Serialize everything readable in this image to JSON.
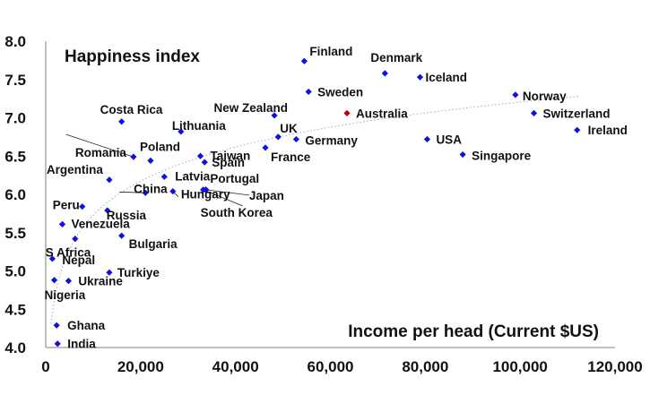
{
  "chart_data": {
    "type": "scatter",
    "title": "Happiness index",
    "xlabel": "Income per head (Current $US)",
    "ylabel": "",
    "xlim": [
      0,
      120000
    ],
    "ylim": [
      4.0,
      8.0
    ],
    "x_ticks": [
      "0",
      "20,000",
      "40,000",
      "60,000",
      "80,000",
      "100,000",
      "120,000"
    ],
    "y_ticks": [
      "4.0",
      "4.5",
      "5.0",
      "5.5",
      "6.0",
      "6.5",
      "7.0",
      "7.5",
      "8.0"
    ],
    "trendline": "logarithmic, dotted",
    "colors": {
      "default": "#1010e0",
      "highlight": "#c00000",
      "trend": "#9aa8d8"
    },
    "points": [
      {
        "name": "Finland",
        "x": 54500,
        "y": 7.74
      },
      {
        "name": "Denmark",
        "x": 71500,
        "y": 7.58
      },
      {
        "name": "Iceland",
        "x": 78900,
        "y": 7.53
      },
      {
        "name": "Sweden",
        "x": 55400,
        "y": 7.34
      },
      {
        "name": "Norway",
        "x": 99000,
        "y": 7.3
      },
      {
        "name": "Australia",
        "x": 63500,
        "y": 7.06,
        "highlight": true
      },
      {
        "name": "Switzerland",
        "x": 102900,
        "y": 7.06
      },
      {
        "name": "New Zealand",
        "x": 48200,
        "y": 7.03
      },
      {
        "name": "Costa Rica",
        "x": 16000,
        "y": 6.95
      },
      {
        "name": "Ireland",
        "x": 112000,
        "y": 6.84
      },
      {
        "name": "Lithuania",
        "x": 28500,
        "y": 6.82
      },
      {
        "name": "UK",
        "x": 49000,
        "y": 6.75
      },
      {
        "name": "Germany",
        "x": 52800,
        "y": 6.72
      },
      {
        "name": "USA",
        "x": 80400,
        "y": 6.72
      },
      {
        "name": "France",
        "x": 46300,
        "y": 6.61
      },
      {
        "name": "Taiwan",
        "x": 32600,
        "y": 6.5
      },
      {
        "name": "Singapore",
        "x": 87900,
        "y": 6.52
      },
      {
        "name": "Romania",
        "x": 18500,
        "y": 6.49
      },
      {
        "name": "Poland",
        "x": 22100,
        "y": 6.44
      },
      {
        "name": "Spain",
        "x": 33500,
        "y": 6.42
      },
      {
        "name": "Latvia",
        "x": 25000,
        "y": 6.23
      },
      {
        "name": "Argentina",
        "x": 13400,
        "y": 6.19
      },
      {
        "name": "Portugal",
        "x": 33700,
        "y": 6.06
      },
      {
        "name": "Japan",
        "x": 33800,
        "y": 6.06
      },
      {
        "name": "Hungary",
        "x": 26800,
        "y": 6.04
      },
      {
        "name": "South Korea",
        "x": 33200,
        "y": 6.06
      },
      {
        "name": "China",
        "x": 21000,
        "y": 6.02
      },
      {
        "name": "Peru",
        "x": 7700,
        "y": 5.84
      },
      {
        "name": "Russia",
        "x": 13000,
        "y": 5.79
      },
      {
        "name": "Venezuela",
        "x": 3500,
        "y": 5.61
      },
      {
        "name": "Bulgaria",
        "x": 16000,
        "y": 5.46
      },
      {
        "name": "S Africa",
        "x": 6200,
        "y": 5.42
      },
      {
        "name": "Nepal",
        "x": 1400,
        "y": 5.16
      },
      {
        "name": "Turkiye",
        "x": 13400,
        "y": 4.98
      },
      {
        "name": "Nigeria",
        "x": 1800,
        "y": 4.88
      },
      {
        "name": "Ukraine",
        "x": 4800,
        "y": 4.87
      },
      {
        "name": "Ghana",
        "x": 2300,
        "y": 4.29
      },
      {
        "name": "India",
        "x": 2500,
        "y": 4.05
      }
    ]
  }
}
